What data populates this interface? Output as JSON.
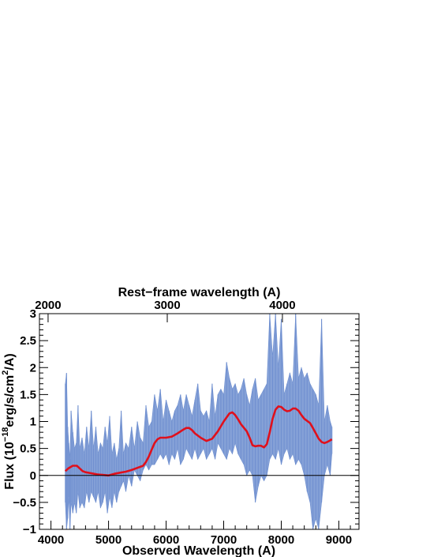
{
  "chart_data": {
    "type": "line",
    "title": "",
    "xlabel": "Observed Wavelength (A)",
    "ylabel_main": "Flux (10",
    "ylabel_exp": "−18",
    "ylabel_units": "erg/s/cm",
    "ylabel_sq": "2",
    "ylabel_tail": "/A)",
    "top_xlabel": "Rest−frame wavelength (A)",
    "xlim": [
      3800,
      9350
    ],
    "ylim": [
      -1,
      3
    ],
    "x_ticks": [
      4000,
      5000,
      6000,
      7000,
      8000,
      9000
    ],
    "x_tick_labels": [
      "4000",
      "5000",
      "6000",
      "7000",
      "8000",
      "9000"
    ],
    "y_ticks": [
      -1,
      -0.5,
      0,
      0.5,
      1,
      1.5,
      2,
      2.5,
      3
    ],
    "y_tick_labels": [
      "−1",
      "−0.5",
      "0",
      "0.5",
      "1",
      "1.5",
      "2",
      "2.5",
      "3"
    ],
    "top_ticks_observed": [
      3950,
      6020,
      8020
    ],
    "top_tick_labels": [
      "2000",
      "3000",
      "4000"
    ],
    "zero_line": 0,
    "series": [
      {
        "style": "noisy-fill",
        "color": "#7090d0",
        "x": [
          4250,
          4270,
          4290,
          4310,
          4330,
          4350,
          4380,
          4410,
          4440,
          4470,
          4500,
          4540,
          4580,
          4620,
          4660,
          4700,
          4740,
          4780,
          4820,
          4860,
          4900,
          4940,
          4980,
          5020,
          5060,
          5100,
          5140,
          5180,
          5220,
          5260,
          5300,
          5350,
          5400,
          5450,
          5500,
          5550,
          5600,
          5650,
          5700,
          5750,
          5800,
          5850,
          5900,
          5950,
          6000,
          6050,
          6100,
          6150,
          6200,
          6250,
          6300,
          6350,
          6400,
          6450,
          6500,
          6550,
          6600,
          6650,
          6700,
          6750,
          6800,
          6850,
          6900,
          6950,
          7000,
          7050,
          7100,
          7150,
          7200,
          7250,
          7300,
          7350,
          7400,
          7450,
          7500,
          7550,
          7600,
          7650,
          7700,
          7750,
          7800,
          7850,
          7900,
          7950,
          8000,
          8050,
          8100,
          8150,
          8200,
          8250,
          8300,
          8350,
          8400,
          8450,
          8500,
          8550,
          8600,
          8650,
          8700,
          8750,
          8800,
          8850,
          8880
        ],
        "upper": [
          1.7,
          1.9,
          0.9,
          0.6,
          0.3,
          1.2,
          0.8,
          0.5,
          0.6,
          1.3,
          0.5,
          0.7,
          0.4,
          0.9,
          0.5,
          1.2,
          0.5,
          0.9,
          0.4,
          0.6,
          0.5,
          0.9,
          0.6,
          1.1,
          0.4,
          0.6,
          0.3,
          0.5,
          1.2,
          0.4,
          0.6,
          0.5,
          0.9,
          0.5,
          1.0,
          0.7,
          0.6,
          1.3,
          0.9,
          1.0,
          1.5,
          1.2,
          1.6,
          1.0,
          1.4,
          1.2,
          1.0,
          1.2,
          1.3,
          1.5,
          1.2,
          1.5,
          1.3,
          1.1,
          1.4,
          1.7,
          1.2,
          1.1,
          1.2,
          1.0,
          1.7,
          1.1,
          1.5,
          1.6,
          1.5,
          2.1,
          1.8,
          1.6,
          1.7,
          1.5,
          1.6,
          1.8,
          1.5,
          1.3,
          1.6,
          1.8,
          1.4,
          1.5,
          1.6,
          1.7,
          3.0,
          2.2,
          3.0,
          2.0,
          2.9,
          1.5,
          1.7,
          1.9,
          1.7,
          3.0,
          1.8,
          2.0,
          1.8,
          1.9,
          1.7,
          1.6,
          1.5,
          1.3,
          2.9,
          1.0,
          1.3,
          1.0,
          0.9
        ],
        "lower": [
          -0.5,
          -1.0,
          -0.8,
          -0.4,
          -1.0,
          -0.5,
          -0.7,
          -0.5,
          -0.7,
          -0.3,
          -0.6,
          -0.5,
          -0.6,
          -0.3,
          -0.5,
          -0.3,
          -0.4,
          -0.5,
          -0.3,
          -0.6,
          -0.5,
          -0.3,
          -0.7,
          -0.4,
          -0.6,
          -0.3,
          -0.5,
          -0.3,
          -0.2,
          -0.1,
          -0.3,
          0.0,
          -0.2,
          0.1,
          0.0,
          -0.1,
          0.1,
          0.2,
          0.1,
          0.2,
          0.2,
          0.3,
          0.4,
          0.3,
          0.4,
          0.2,
          0.4,
          0.3,
          0.5,
          0.2,
          0.3,
          0.5,
          0.4,
          0.3,
          0.5,
          0.3,
          0.4,
          0.5,
          0.3,
          0.4,
          0.5,
          0.3,
          0.6,
          0.5,
          0.4,
          0.3,
          0.5,
          0.4,
          0.6,
          0.4,
          0.3,
          0.2,
          0.0,
          0.1,
          0.0,
          -0.5,
          -0.2,
          0.0,
          -0.1,
          0.0,
          0.3,
          0.4,
          0.3,
          0.5,
          0.2,
          0.4,
          0.5,
          0.3,
          0.4,
          0.2,
          0.3,
          0.2,
          0.0,
          -0.3,
          -0.5,
          -1.0,
          -0.8,
          -1.0,
          -0.5,
          0.0,
          0.2,
          0.0,
          0.4
        ]
      },
      {
        "style": "smooth-line",
        "color": "#e0101c",
        "x": [
          4250,
          4300,
          4380,
          4450,
          4500,
          4550,
          4600,
          4700,
          4800,
          4900,
          5000,
          5100,
          5200,
          5300,
          5400,
          5500,
          5600,
          5650,
          5700,
          5750,
          5800,
          5850,
          5900,
          6000,
          6100,
          6200,
          6300,
          6350,
          6400,
          6450,
          6500,
          6600,
          6700,
          6800,
          6900,
          7000,
          7100,
          7150,
          7200,
          7250,
          7300,
          7400,
          7450,
          7500,
          7550,
          7600,
          7650,
          7700,
          7750,
          7800,
          7850,
          7900,
          7950,
          8000,
          8050,
          8100,
          8150,
          8200,
          8250,
          8300,
          8350,
          8400,
          8500,
          8550,
          8600,
          8650,
          8700,
          8750,
          8800,
          8850,
          8880
        ],
        "y": [
          0.08,
          0.13,
          0.18,
          0.18,
          0.13,
          0.08,
          0.06,
          0.04,
          0.02,
          0.01,
          0.0,
          0.03,
          0.05,
          0.07,
          0.1,
          0.14,
          0.18,
          0.25,
          0.35,
          0.48,
          0.6,
          0.67,
          0.7,
          0.7,
          0.72,
          0.78,
          0.85,
          0.88,
          0.88,
          0.84,
          0.78,
          0.7,
          0.64,
          0.68,
          0.82,
          1.0,
          1.15,
          1.17,
          1.12,
          1.04,
          0.95,
          0.82,
          0.7,
          0.56,
          0.54,
          0.55,
          0.55,
          0.52,
          0.58,
          0.8,
          1.05,
          1.22,
          1.28,
          1.27,
          1.22,
          1.19,
          1.2,
          1.24,
          1.24,
          1.2,
          1.12,
          1.05,
          0.97,
          0.88,
          0.78,
          0.68,
          0.62,
          0.6,
          0.62,
          0.65,
          0.67
        ]
      }
    ]
  }
}
